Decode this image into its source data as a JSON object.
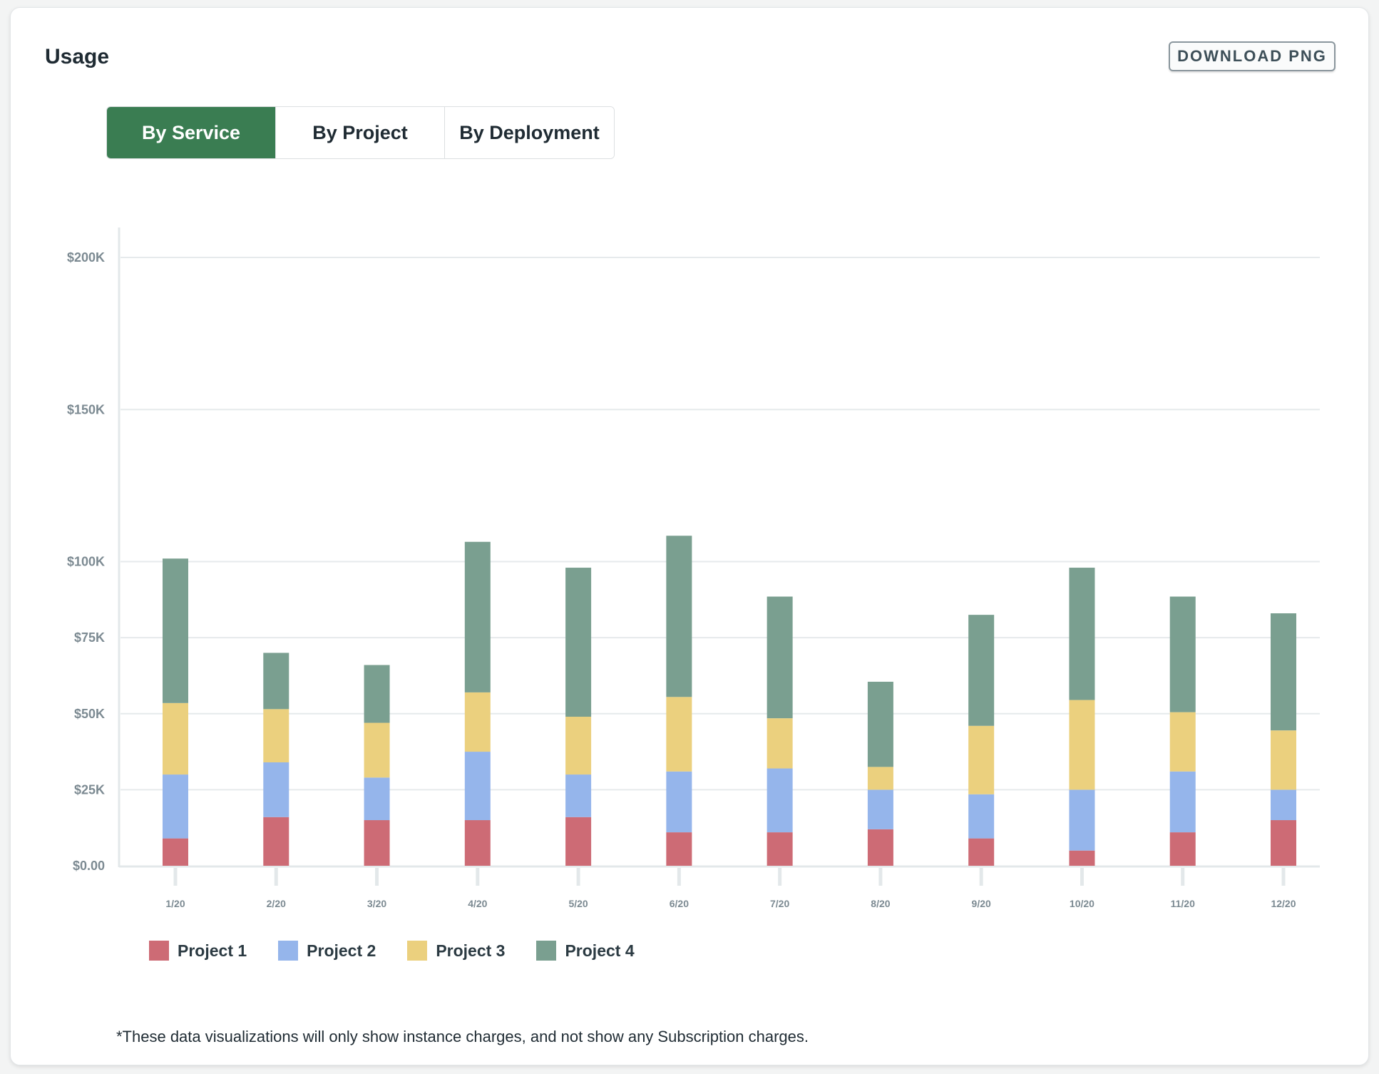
{
  "header": {
    "title": "Usage",
    "download_label": "DOWNLOAD PNG"
  },
  "tabs": [
    {
      "label": "By Service",
      "active": true
    },
    {
      "label": "By Project",
      "active": false
    },
    {
      "label": "By Deployment",
      "active": false
    }
  ],
  "colors": {
    "active_tab": "#3a7d52",
    "project1": "#cd6b75",
    "project2": "#95b5eb",
    "project3": "#ebd07e",
    "project4": "#7a9f90"
  },
  "footnote": "*These data visualizations will only show instance charges, and not show any Subscription charges.",
  "chart_data": {
    "type": "bar",
    "stacked": true,
    "categories": [
      "1/20",
      "2/20",
      "3/20",
      "4/20",
      "5/20",
      "6/20",
      "7/20",
      "8/20",
      "9/20",
      "10/20",
      "11/20",
      "12/20"
    ],
    "series": [
      {
        "name": "Project 1",
        "color": "#cd6b75",
        "values": [
          9000,
          16000,
          15000,
          15000,
          16000,
          11000,
          11000,
          12000,
          9000,
          5000,
          11000,
          15000
        ]
      },
      {
        "name": "Project 2",
        "color": "#95b5eb",
        "values": [
          21000,
          18000,
          14000,
          22500,
          14000,
          20000,
          21000,
          13000,
          14500,
          20000,
          20000,
          10000
        ]
      },
      {
        "name": "Project 3",
        "color": "#ebd07e",
        "values": [
          23500,
          17500,
          18000,
          19500,
          19000,
          24500,
          16500,
          7500,
          22500,
          29500,
          19500,
          19500
        ]
      },
      {
        "name": "Project 4",
        "color": "#7a9f90",
        "values": [
          47500,
          18500,
          19000,
          49500,
          49000,
          53000,
          40000,
          28000,
          36500,
          43500,
          38000,
          38500
        ]
      }
    ],
    "yticks": [
      "$0.00",
      "$25K",
      "$50K",
      "$75K",
      "$100K",
      "$150K",
      "$200K"
    ],
    "ytick_values": [
      0,
      25000,
      50000,
      75000,
      100000,
      150000,
      200000
    ],
    "ylim": [
      0,
      200000
    ],
    "grid": true,
    "legend": "bottom-left"
  }
}
